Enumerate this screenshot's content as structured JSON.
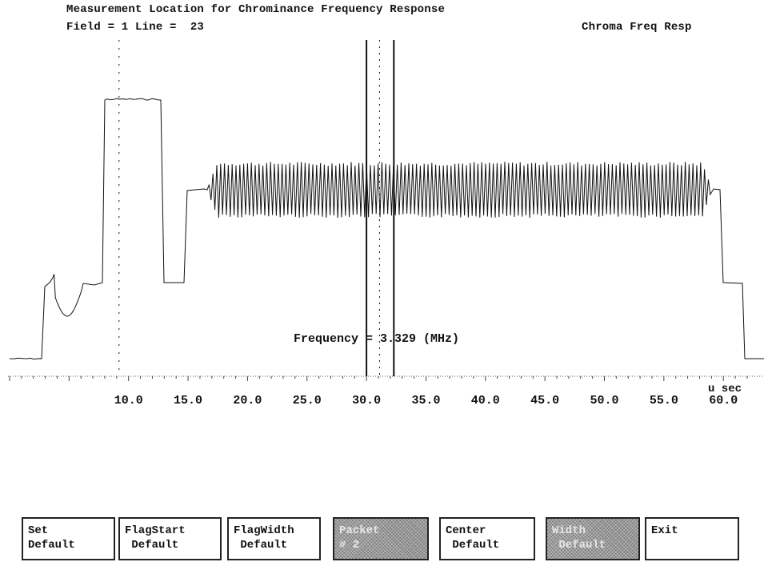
{
  "header": {
    "title": "Measurement Location for Chrominance Frequency Response",
    "field_line": "Field = 1 Line =  23",
    "mode": "Chroma Freq Resp"
  },
  "readout": {
    "label": "Frequency =",
    "value": "3.329",
    "unit": "(MHz)"
  },
  "axis": {
    "unit": "u sec",
    "min": 0,
    "max": 62,
    "ticks": [
      "10.0",
      "15.0",
      "20.0",
      "25.0",
      "30.0",
      "35.0",
      "40.0",
      "45.0",
      "50.0",
      "55.0",
      "60.0"
    ],
    "tick_values": [
      10,
      15,
      20,
      25,
      30,
      35,
      40,
      45,
      50,
      55,
      60
    ]
  },
  "cursors": {
    "flag_start_us": 30.0,
    "flag_end_us": 32.3,
    "center_us": 31.1,
    "trigger_us": 9.2
  },
  "softkeys": [
    {
      "line1": "Set",
      "line2": "Default",
      "align": "left",
      "active": false
    },
    {
      "line1": "FlagStart",
      "line2": " Default",
      "align": "left",
      "active": false
    },
    {
      "line1": "FlagWidth",
      "line2": " Default",
      "align": "left",
      "active": false
    },
    {
      "line1": "Packet",
      "line2": "# 2",
      "align": "left",
      "active": true
    },
    {
      "line1": "Center",
      "line2": " Default",
      "align": "left",
      "active": false
    },
    {
      "line1": "Width",
      "line2": " Default",
      "align": "left",
      "active": true
    },
    {
      "line1": "Exit",
      "line2": "",
      "align": "left",
      "active": false
    }
  ],
  "colors": {
    "trace": "#111111",
    "background": "#ffffff",
    "active_key": "#9a9a9a"
  }
}
